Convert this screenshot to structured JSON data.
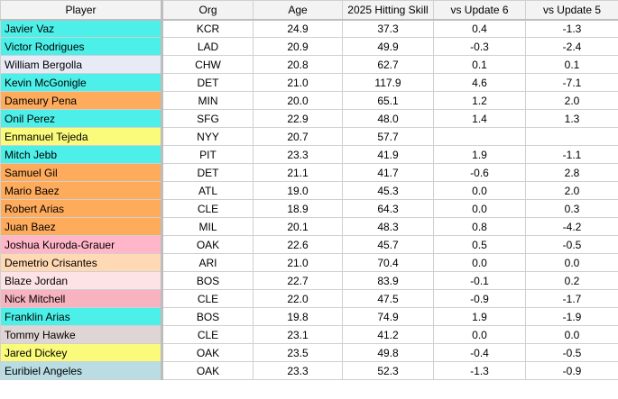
{
  "colors": {
    "cyan": "#4cf0e9",
    "lavender": "#e8eaf6",
    "orange": "#ffab5c",
    "yellow": "#fbfb7b",
    "pink": "#ffb6c8",
    "peach": "#ffd9b3",
    "light_pink": "#fde2e6",
    "rose": "#f8b3c0",
    "taupe": "#e0d5d5",
    "light_blue": "#b9dde3"
  },
  "headers": [
    "Player",
    "Org",
    "Age",
    "2025 Hitting Skill",
    "vs Update 6",
    "vs Update 5"
  ],
  "rows": [
    {
      "player": "Javier Vaz",
      "org": "KCR",
      "age": "24.9",
      "skill": "37.3",
      "u6": "0.4",
      "u5": "-1.3",
      "color": "cyan"
    },
    {
      "player": "Victor Rodrigues",
      "org": "LAD",
      "age": "20.9",
      "skill": "49.9",
      "u6": "-0.3",
      "u5": "-2.4",
      "color": "cyan"
    },
    {
      "player": "William Bergolla",
      "org": "CHW",
      "age": "20.8",
      "skill": "62.7",
      "u6": "0.1",
      "u5": "0.1",
      "color": "lavender"
    },
    {
      "player": "Kevin McGonigle",
      "org": "DET",
      "age": "21.0",
      "skill": "117.9",
      "u6": "4.6",
      "u5": "-7.1",
      "color": "cyan"
    },
    {
      "player": "Dameury Pena",
      "org": "MIN",
      "age": "20.0",
      "skill": "65.1",
      "u6": "1.2",
      "u5": "2.0",
      "color": "orange"
    },
    {
      "player": "Onil Perez",
      "org": "SFG",
      "age": "22.9",
      "skill": "48.0",
      "u6": "1.4",
      "u5": "1.3",
      "color": "cyan"
    },
    {
      "player": "Enmanuel Tejeda",
      "org": "NYY",
      "age": "20.7",
      "skill": "57.7",
      "u6": "",
      "u5": "",
      "color": "yellow"
    },
    {
      "player": "Mitch Jebb",
      "org": "PIT",
      "age": "23.3",
      "skill": "41.9",
      "u6": "1.9",
      "u5": "-1.1",
      "color": "cyan"
    },
    {
      "player": "Samuel Gil",
      "org": "DET",
      "age": "21.1",
      "skill": "41.7",
      "u6": "-0.6",
      "u5": "2.8",
      "color": "orange"
    },
    {
      "player": "Mario Baez",
      "org": "ATL",
      "age": "19.0",
      "skill": "45.3",
      "u6": "0.0",
      "u5": "2.0",
      "color": "orange"
    },
    {
      "player": "Robert Arias",
      "org": "CLE",
      "age": "18.9",
      "skill": "64.3",
      "u6": "0.0",
      "u5": "0.3",
      "color": "orange"
    },
    {
      "player": "Juan Baez",
      "org": "MIL",
      "age": "20.1",
      "skill": "48.3",
      "u6": "0.8",
      "u5": "-4.2",
      "color": "orange"
    },
    {
      "player": "Joshua Kuroda-Grauer",
      "org": "OAK",
      "age": "22.6",
      "skill": "45.7",
      "u6": "0.5",
      "u5": "-0.5",
      "color": "pink"
    },
    {
      "player": "Demetrio Crisantes",
      "org": "ARI",
      "age": "21.0",
      "skill": "70.4",
      "u6": "0.0",
      "u5": "0.0",
      "color": "peach"
    },
    {
      "player": "Blaze Jordan",
      "org": "BOS",
      "age": "22.7",
      "skill": "83.9",
      "u6": "-0.1",
      "u5": "0.2",
      "color": "light_pink"
    },
    {
      "player": "Nick Mitchell",
      "org": "CLE",
      "age": "22.0",
      "skill": "47.5",
      "u6": "-0.9",
      "u5": "-1.7",
      "color": "rose"
    },
    {
      "player": "Franklin Arias",
      "org": "BOS",
      "age": "19.8",
      "skill": "74.9",
      "u6": "1.9",
      "u5": "-1.9",
      "color": "cyan"
    },
    {
      "player": "Tommy Hawke",
      "org": "CLE",
      "age": "23.1",
      "skill": "41.2",
      "u6": "0.0",
      "u5": "0.0",
      "color": "taupe"
    },
    {
      "player": "Jared Dickey",
      "org": "OAK",
      "age": "23.5",
      "skill": "49.8",
      "u6": "-0.4",
      "u5": "-0.5",
      "color": "yellow"
    },
    {
      "player": "Euribiel Angeles",
      "org": "OAK",
      "age": "23.3",
      "skill": "52.3",
      "u6": "-1.3",
      "u5": "-0.9",
      "color": "light_blue"
    }
  ]
}
